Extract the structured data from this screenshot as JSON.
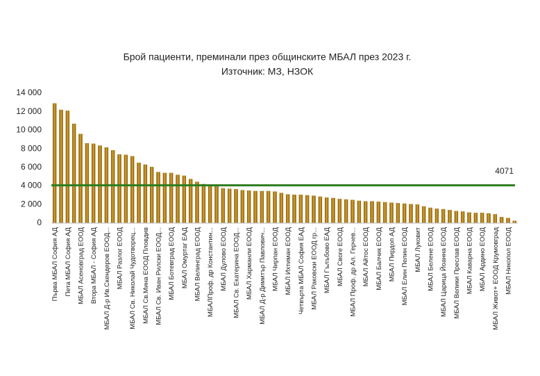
{
  "chart_data": {
    "type": "bar",
    "title": "Брой пациенти, преминали през общинските МБАЛ през 2023 г.",
    "subtitle": "Източник: МЗ, НЗОК",
    "categories": [
      "Първа МБАЛ София АД",
      null,
      "Пета МБАЛ София АД",
      null,
      "МБАЛ Асеновград ЕООД",
      null,
      "Втора МБАЛ - София АД",
      null,
      "МБАЛ Д-р Ив.Скендеров ЕООД...",
      null,
      "МБАЛ Разлог ЕООД",
      null,
      "МБАЛ Св. Николай Чудотворец...",
      null,
      "МБАЛ Св.Мина ЕООД Пловдив",
      null,
      "МБАЛ Св. Иван Рилски ЕООД...",
      null,
      "МБАЛ Ботевград ЕООД",
      null,
      "МБАЛ Омуртаг ЕАД",
      null,
      "МБАЛ Велинград ЕООД",
      null,
      "МБАЛПроф. др Константин...",
      null,
      "МБАЛ Дулово ЕООД",
      null,
      "МБАЛ Св. Екатерина ЕООД...",
      null,
      "МБАЛ Харманли ЕООД",
      null,
      "МБАЛ Д-р Димитър Павлович...",
      null,
      "МБАЛ Чирпан ЕООД",
      null,
      "МБАЛ Ихтиман ЕООД",
      null,
      "Четвърта МБАЛ София ЕАД",
      null,
      "МБАЛ Раковски ЕООД гр...",
      null,
      "МБАЛ Гълъбово ЕАД",
      null,
      "МБАЛ Своге ЕООД",
      null,
      "МБАЛ Проф. др Ал. Герчев...",
      null,
      "МБАЛ Айтос ЕООД",
      null,
      "МБАЛ Балчик ЕООД",
      null,
      "МБАЛ Пирдоп АД",
      null,
      "МБАЛ Елин Пелин ЕООД",
      null,
      "МБАЛ Луковит",
      null,
      "МБАЛ Белене ЕООД",
      null,
      "МБАЛ Царица Йоанна ЕООД",
      null,
      "МБАЛ Велики Преслав ЕООД",
      null,
      "МБАЛ Каварна ЕООД",
      null,
      "МБАЛ Ардино ЕООД",
      null,
      "МБАЛ Живот+ ЕООД Крумовград",
      null,
      "МБАЛ Никопол ЕООД",
      null
    ],
    "values": [
      12900,
      12200,
      12100,
      10700,
      9600,
      8600,
      8550,
      8350,
      8150,
      7850,
      7400,
      7350,
      7200,
      6500,
      6300,
      6050,
      5500,
      5400,
      5400,
      5200,
      5100,
      4750,
      4450,
      4200,
      4100,
      4100,
      3750,
      3700,
      3650,
      3550,
      3500,
      3450,
      3450,
      3450,
      3400,
      3250,
      3100,
      3050,
      3050,
      3000,
      2950,
      2850,
      2750,
      2700,
      2600,
      2550,
      2500,
      2400,
      2350,
      2350,
      2300,
      2250,
      2200,
      2150,
      2100,
      2050,
      2000,
      1800,
      1650,
      1550,
      1500,
      1400,
      1300,
      1250,
      1150,
      1100,
      1100,
      1050,
      950,
      650,
      550,
      250
    ],
    "color": "#b07d14",
    "reference_line": {
      "value": 4071,
      "color": "#2e7d1f"
    },
    "ylim": [
      0,
      14000
    ],
    "yticks": [
      0,
      {
        "value": 2000,
        "label": "2 000"
      },
      {
        "value": 4000,
        "label": "4 000"
      },
      {
        "value": 6000,
        "label": "6 000"
      },
      {
        "value": 8000,
        "label": "8 000"
      },
      {
        "value": 10000,
        "label": "10 000"
      },
      {
        "value": 12000,
        "label": "12 000"
      },
      {
        "value": 14000,
        "label": "14 000"
      }
    ],
    "grid": false
  }
}
